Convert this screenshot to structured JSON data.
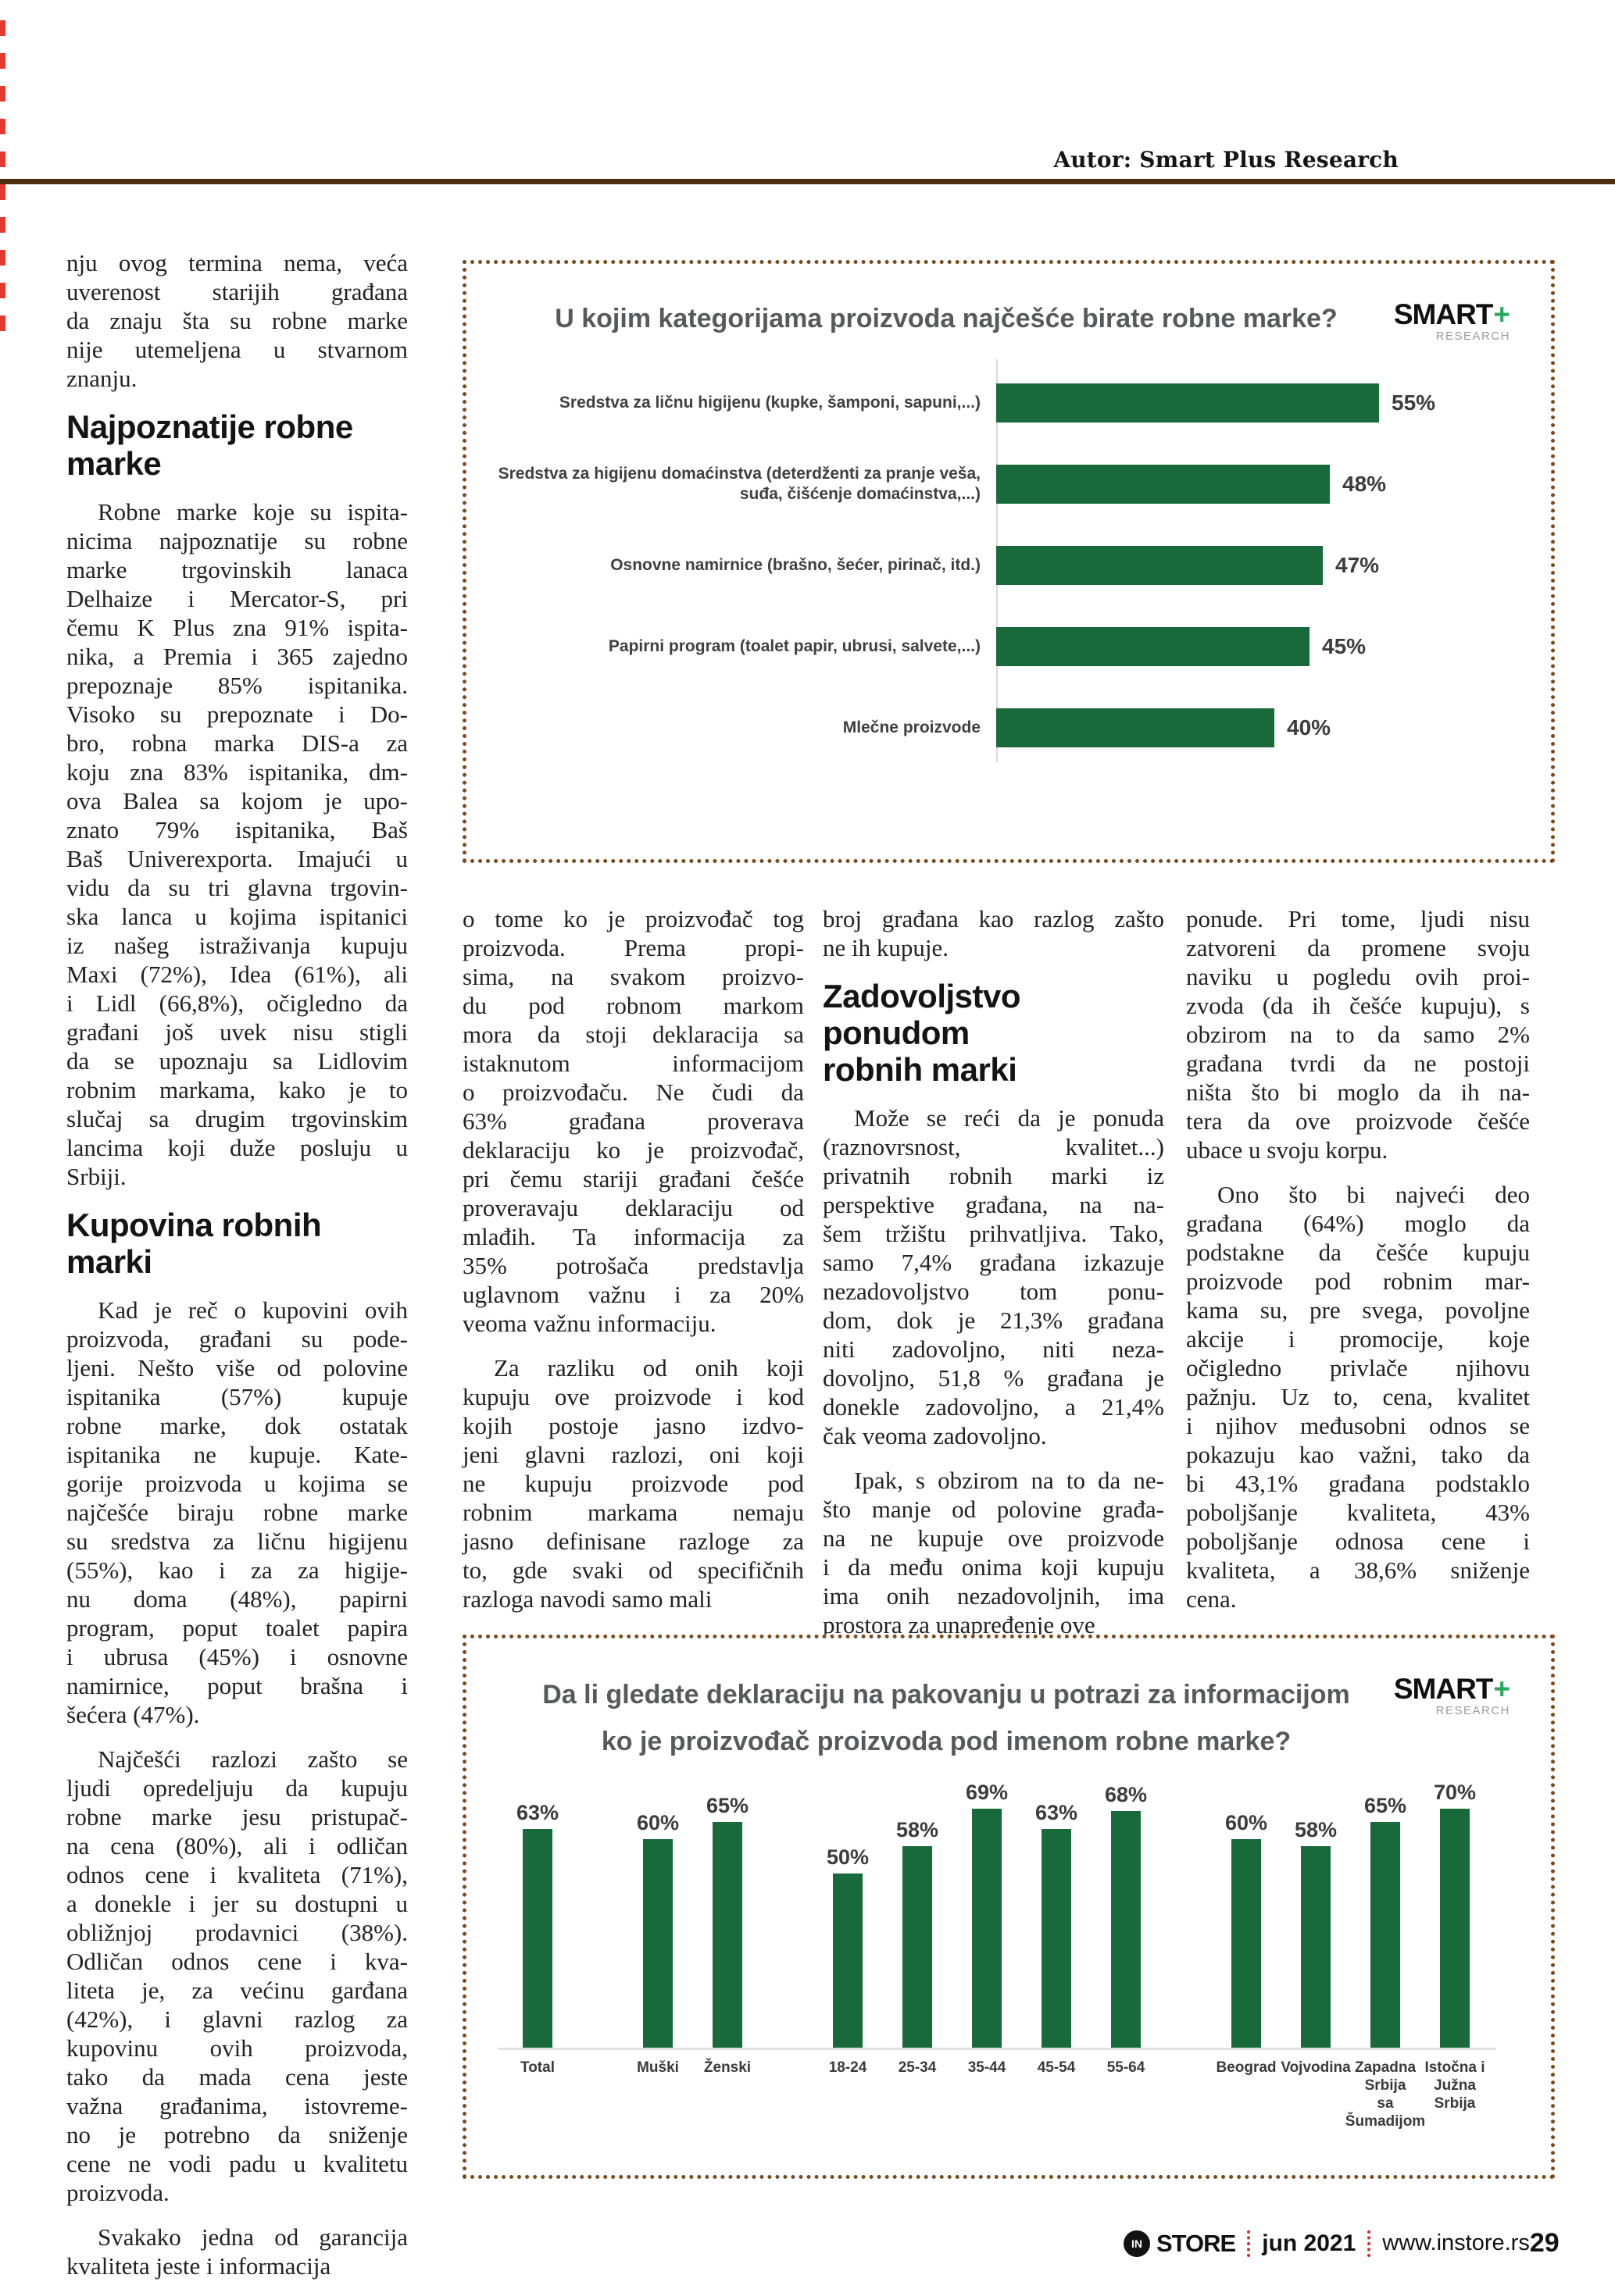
{
  "header": {
    "author": "Autor: Smart Plus Research"
  },
  "logo": {
    "smart": "SMART",
    "plus": "+",
    "research": "RESEARCH"
  },
  "colors": {
    "bar_green": "#186a3b",
    "border_brown": "#7a4a1e",
    "rule_brown": "#4e2d0e",
    "footer_red": "#d8262c",
    "title_gray": "#58595b",
    "logo_plus_green": "#27a95c"
  },
  "columns": {
    "col1": {
      "blocks": [
        {
          "type": "p",
          "indent": false,
          "lines": [
            "nju ovog termina nema, veća",
            "uverenost starijih građana",
            "da znaju šta su robne marke",
            "nije utemeljena u stvarnom",
            "znanju."
          ]
        },
        {
          "type": "h",
          "lines": [
            "Najpoznatije robne",
            "marke"
          ]
        },
        {
          "type": "p",
          "indent": true,
          "lines": [
            "Robne marke koje su ispita-",
            "nicima najpoznatije su robne",
            "marke trgovinskih lanaca",
            "Delhaize i Mercator-S, pri",
            "čemu K Plus zna 91% ispita-",
            "nika, a Premia i 365 zajedno",
            "prepoznaje 85% ispitanika.",
            "Visoko su prepoznate i Do-",
            "bro, robna marka DIS-a za",
            "koju zna 83% ispitanika, dm-",
            "ova Balea sa kojom je upo-",
            "znato 79% ispitanika, Baš",
            "Baš Univerexporta. Imajući u",
            "vidu da su tri glavna trgovin-",
            "ska lanca u kojima ispitanici",
            "iz našeg istraživanja kupuju",
            "Maxi (72%), Idea (61%), ali",
            "i Lidl (66,8%), očigledno da",
            "građani još uvek nisu stigli",
            "da se upoznaju sa Lidlovim",
            "robnim markama, kako je to",
            "slučaj sa drugim trgovinskim",
            "lancima koji duže posluju u",
            "Srbiji."
          ]
        },
        {
          "type": "h",
          "lines": [
            "Kupovina robnih marki"
          ]
        },
        {
          "type": "p",
          "indent": true,
          "lines": [
            "Kad je reč o kupovini ovih",
            "proizvoda, građani su pode-",
            "ljeni. Nešto više od polovine",
            "ispitanika (57%) kupuje",
            "robne marke, dok ostatak",
            "ispitanika ne kupuje. Kate-",
            "gorije proizvoda u kojima se",
            "najčešće biraju robne marke",
            "su sredstva za ličnu higijenu",
            "(55%), kao i za za higije-",
            "nu doma (48%), papirni",
            "program, poput toalet papira",
            "i ubrusa (45%) i osnovne",
            "namirnice, poput brašna i",
            "šećera (47%)."
          ]
        },
        {
          "type": "p",
          "indent": true,
          "lines": [
            "Najčešći razlozi zašto se",
            "ljudi opredeljuju da kupuju",
            "robne marke jesu pristupač-",
            "na cena (80%), ali i odličan",
            "odnos cene i kvaliteta (71%),",
            "a donekle i jer su dostupni u",
            "obližnjoj prodavnici (38%).",
            "Odličan odnos cene i kva-",
            "liteta je, za većinu garđana",
            "(42%), i glavni razlog za",
            "kupovinu ovih proizvoda,",
            "tako da mada cena jeste",
            "važna građanima, istovreme-",
            "no je potrebno da sniženje",
            "cene ne vodi padu u kvalitetu",
            "proizvoda."
          ]
        },
        {
          "type": "p",
          "indent": true,
          "lines": [
            "Svakako jedna od garancija",
            "kvaliteta jeste i informacija"
          ]
        }
      ]
    },
    "col2": {
      "blocks": [
        {
          "type": "p",
          "indent": false,
          "lines": [
            "o tome ko je proizvođač tog",
            "proizvoda. Prema propi-",
            "sima, na svakom proizvo-",
            "du pod robnom markom",
            "mora da stoji deklaracija sa",
            "istaknutom informacijom",
            "o proizvođaču. Ne čudi da",
            "63% građana proverava",
            "deklaraciju ko je proizvođač,",
            "pri čemu stariji građani češće",
            "proveravaju deklaraciju od",
            "mlađih. Ta informacija za",
            "35% potrošača predstavlja",
            "uglavnom važnu i za 20%",
            "veoma važnu informaciju."
          ]
        },
        {
          "type": "p",
          "indent": true,
          "lines": [
            "Za razliku od onih koji",
            "kupuju ove proizvode i kod",
            "kojih postoje jasno izdvo-",
            "jeni glavni razlozi, oni koji",
            "ne kupuju proizvode pod",
            "robnim markama nemaju",
            "jasno definisane razloge za",
            "to, gde svaki od specifičnih",
            "razloga navodi samo mali"
          ]
        }
      ]
    },
    "col3": {
      "blocks": [
        {
          "type": "p",
          "indent": false,
          "lines": [
            "broj građana kao razlog zašto",
            "ne ih kupuje."
          ]
        },
        {
          "type": "h",
          "lines": [
            "Zadovoljstvo ponudom",
            "robnih marki"
          ]
        },
        {
          "type": "p",
          "indent": true,
          "lines": [
            "Može se reći da je ponuda",
            "(raznovrsnost, kvalitet...)",
            "privatnih robnih marki iz",
            "perspektive građana, na na-",
            "šem tržištu prihvatljiva. Tako,",
            "samo 7,4% građana izkazuje",
            "nezadovoljstvo tom ponu-",
            "dom, dok je 21,3% građana",
            "niti zadovoljno, niti neza-",
            "dovoljno, 51,8 % građana je",
            "donekle zadovoljno, a 21,4%",
            "čak veoma zadovoljno."
          ]
        },
        {
          "type": "p",
          "indent": true,
          "lines": [
            "Ipak, s obzirom na to da ne-",
            "što manje od polovine građa-",
            "na ne kupuje ove proizvode",
            "i da među onima koji kupuju",
            "ima onih nezadovoljnih, ima",
            "prostora za unapređenje ove"
          ]
        }
      ]
    },
    "col4": {
      "blocks": [
        {
          "type": "p",
          "indent": false,
          "lines": [
            "ponude. Pri tome, ljudi nisu",
            "zatvoreni da promene svoju",
            "naviku u pogledu ovih proi-",
            "zvoda (da ih češće kupuju), s",
            "obzirom na to da samo 2%",
            "građana tvrdi da ne postoji",
            "ništa što bi moglo da ih na-",
            "tera da ove proizvode češće",
            "ubace u svoju korpu."
          ]
        },
        {
          "type": "p",
          "indent": true,
          "lines": [
            "Ono što bi najveći deo",
            "građana (64%) moglo da",
            "podstakne da češće kupuju",
            "proizvode pod robnim mar-",
            "kama su, pre svega, povoljne",
            "akcije i promocije, koje",
            "očigledno privlače njihovu",
            "pažnju. Uz to, cena, kvalitet",
            "i njihov međusobni odnos se",
            "pokazuju kao važni, tako da",
            "bi 43,1% građana podstaklo",
            "poboljšanje kvaliteta, 43%",
            "poboljšanje odnosa cene i",
            "kvaliteta, a 38,6% sniženje",
            "cena."
          ]
        }
      ]
    }
  },
  "chart_data": [
    {
      "type": "bar",
      "orientation": "horizontal",
      "title": "U kojim kategorijama proizvoda najčešće birate robne marke?",
      "unit": "%",
      "bar_color": "#186a3b",
      "grid": false,
      "xlim": [
        0,
        60
      ],
      "categories": [
        "Sredstva za ličnu higijenu (kupke, šamponi, sapuni,...)",
        "Sredstva za higijenu domaćinstva (deterdženti za pranje veša, suđa, čišćenje domaćinstva,...)",
        "Osnovne namirnice (brašno, šećer, pirinač, itd.)",
        "Papirni program (toalet papir, ubrusi, salvete,...)",
        "Mlečne proizvode"
      ],
      "values": [
        55,
        48,
        47,
        45,
        40
      ],
      "value_labels": [
        "55%",
        "48%",
        "47%",
        "45%",
        "40%"
      ]
    },
    {
      "type": "bar",
      "orientation": "vertical",
      "title": "Da li gledate deklaraciju na pakovanju u potrazi za informacijom ko je proizvođač proizvoda pod imenom robne marke?",
      "unit": "%",
      "bar_color": "#186a3b",
      "grid": false,
      "ylim": [
        0,
        75
      ],
      "categories": [
        "Total",
        "Muški",
        "Ženski",
        "18-24",
        "25-34",
        "35-44",
        "45-54",
        "55-64",
        "Beograd",
        "Vojvodina",
        "Zapadna Srbija sa Šumadijom",
        "Istočna i Južna Srbija"
      ],
      "category_lines": [
        [
          "Total"
        ],
        [
          "Muški"
        ],
        [
          "Ženski"
        ],
        [
          "18-24"
        ],
        [
          "25-34"
        ],
        [
          "35-44"
        ],
        [
          "45-54"
        ],
        [
          "55-64"
        ],
        [
          "Beograd"
        ],
        [
          "Vojvodina"
        ],
        [
          "Zapadna",
          "Srbija",
          "sa",
          "Šumadijom"
        ],
        [
          "Istočna i",
          "Južna",
          "Srbija"
        ]
      ],
      "values": [
        63,
        60,
        65,
        50,
        58,
        69,
        63,
        68,
        60,
        58,
        65,
        70
      ],
      "value_labels": [
        "63%",
        "60%",
        "65%",
        "50%",
        "58%",
        "69%",
        "63%",
        "68%",
        "60%",
        "58%",
        "65%",
        "70%"
      ],
      "groups": [
        [
          0
        ],
        [
          1,
          2
        ],
        [
          3,
          4,
          5,
          6,
          7
        ],
        [
          8,
          9,
          10,
          11
        ]
      ]
    }
  ],
  "footer": {
    "logo_in": "IN",
    "logo_store": "STORE",
    "issue": "jun 2021",
    "website": "www.instore.rs",
    "page_number": "29"
  }
}
